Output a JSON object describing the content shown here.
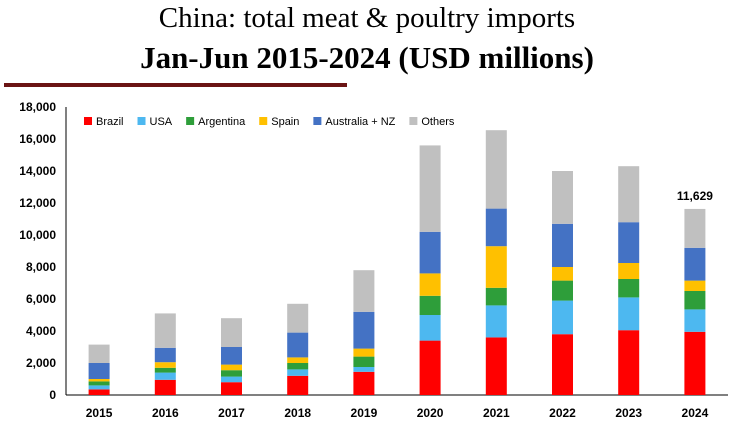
{
  "title_line1": "China: total meat & poultry imports",
  "title_line2": "Jan-Jun 2015-2024 (USD millions)",
  "chart_data": {
    "type": "bar",
    "stacked": true,
    "title": "China: total meat & poultry imports Jan-Jun 2015-2024 (USD millions)",
    "categories": [
      "2015",
      "2016",
      "2017",
      "2018",
      "2019",
      "2020",
      "2021",
      "2022",
      "2023",
      "2024"
    ],
    "series": [
      {
        "name": "Brazil",
        "color": "#ff0000",
        "values": [
          350,
          950,
          800,
          1200,
          1450,
          3400,
          3600,
          3800,
          4050,
          3950
        ]
      },
      {
        "name": "USA",
        "color": "#4db8f0",
        "values": [
          250,
          450,
          350,
          400,
          300,
          1600,
          2000,
          2100,
          2050,
          1400
        ]
      },
      {
        "name": "Argentina",
        "color": "#2e9e3a",
        "values": [
          250,
          300,
          400,
          400,
          650,
          1200,
          1100,
          1250,
          1150,
          1150
        ]
      },
      {
        "name": "Spain",
        "color": "#ffc000",
        "values": [
          150,
          350,
          350,
          350,
          500,
          1400,
          2600,
          850,
          1000,
          650
        ]
      },
      {
        "name": "Australia + NZ",
        "color": "#4472c4",
        "values": [
          1000,
          900,
          1100,
          1550,
          2300,
          2600,
          2350,
          2700,
          2550,
          2050
        ]
      },
      {
        "name": "Others",
        "color": "#c0c0c0",
        "values": [
          1150,
          2150,
          1800,
          1800,
          2600,
          5400,
          4900,
          3300,
          3500,
          2429
        ]
      }
    ],
    "annotation": {
      "category": "2024",
      "text": "11,629"
    },
    "ylim": [
      0,
      18000
    ],
    "yticks": [
      "0",
      "2,000",
      "4,000",
      "6,000",
      "8,000",
      "10,000",
      "12,000",
      "14,000",
      "16,000",
      "18,000"
    ],
    "xlabel": "",
    "ylabel": "",
    "legend": "top-left",
    "grid": false
  }
}
